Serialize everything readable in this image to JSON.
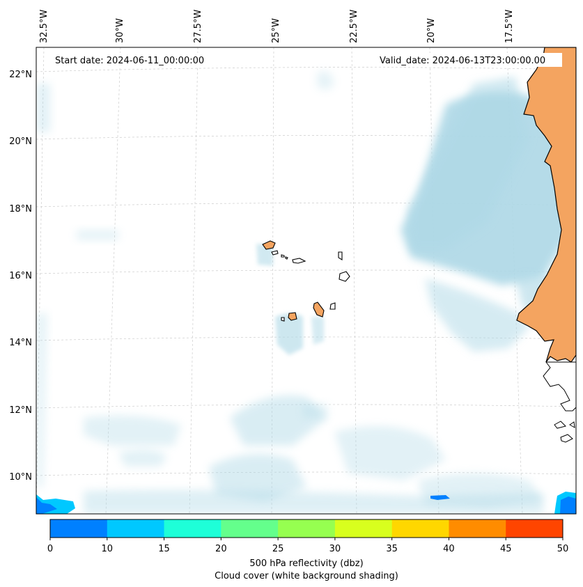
{
  "map": {
    "start_date": "Start date: 2024-06-11_00:00:00",
    "valid_date": "Valid_date: 2024-06-13T23:00:00.00",
    "lon_labels": [
      "32.5°W",
      "30°W",
      "27.5°W",
      "25°W",
      "22.5°W",
      "20°W",
      "17.5°W"
    ],
    "lat_labels": [
      "22°N",
      "20°N",
      "18°N",
      "16°N",
      "14°N",
      "12°N",
      "10°N"
    ],
    "colors": {
      "land": "#f4a460",
      "cloud": "#add8e6",
      "coast": "#000000",
      "grid": "#cccccc"
    }
  },
  "colorbar": {
    "ticks": [
      "0",
      "10",
      "15",
      "20",
      "25",
      "30",
      "35",
      "40",
      "45",
      "50"
    ],
    "colors": [
      "#0080ff",
      "#00c8ff",
      "#1effd8",
      "#64ff8c",
      "#96ff50",
      "#d8ff1e",
      "#ffd700",
      "#ff8c00",
      "#ff4500"
    ],
    "label_line1": "500 hPa reflectivity (dbz)",
    "label_line2": "Cloud cover (white background shading)"
  }
}
